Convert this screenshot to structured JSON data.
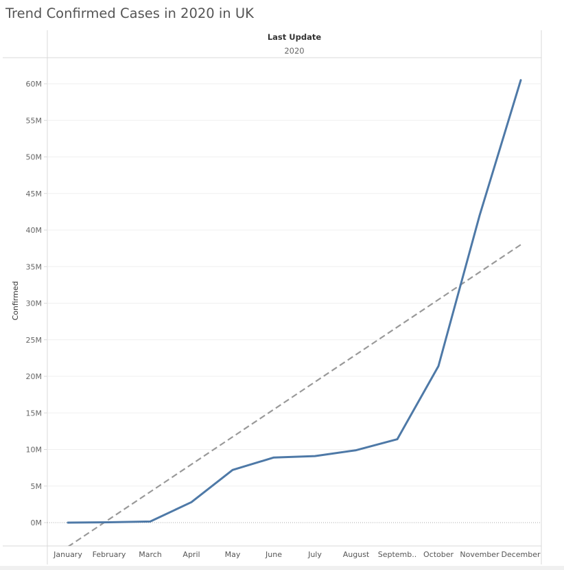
{
  "header": {
    "title": "Trend Confirmed Cases in 2020 in UK"
  },
  "chart_data": {
    "type": "line",
    "column_header_label": "Last Update",
    "column_header_value": "2020",
    "ylabel": "Confirmed",
    "xlabel": "",
    "categories": [
      "January",
      "February",
      "March",
      "April",
      "May",
      "June",
      "July",
      "August",
      "Septemb..",
      "October",
      "November",
      "December"
    ],
    "series": [
      {
        "values": [
          0.0,
          0.05,
          0.15,
          2.8,
          7.2,
          8.9,
          9.1,
          9.9,
          11.4,
          21.4,
          42.0,
          60.5
        ],
        "color": "#4e79a7",
        "style": "solid"
      }
    ],
    "trend_line": {
      "start": -3.3,
      "end": 38.0,
      "color": "#999999",
      "style": "dashed"
    },
    "y_ticks": [
      "0M",
      "5M",
      "10M",
      "15M",
      "20M",
      "25M",
      "30M",
      "35M",
      "40M",
      "45M",
      "50M",
      "55M",
      "60M"
    ],
    "y_tick_values": [
      0,
      5,
      10,
      15,
      20,
      25,
      30,
      35,
      40,
      45,
      50,
      55,
      60
    ],
    "ylim": [
      -3.2,
      63.2
    ],
    "units": "M",
    "grid": true
  }
}
